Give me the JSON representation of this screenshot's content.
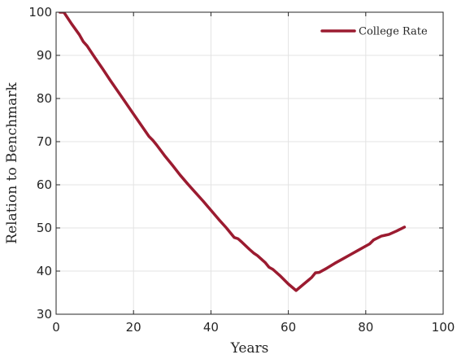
{
  "chart_data": {
    "type": "line",
    "xlabel": "Years",
    "ylabel": "Relation to Benchmark",
    "xlim": [
      0,
      100
    ],
    "ylim": [
      30,
      100
    ],
    "xticks": [
      0,
      20,
      40,
      60,
      80,
      100
    ],
    "yticks": [
      30,
      40,
      50,
      60,
      70,
      80,
      90,
      100
    ],
    "grid": true,
    "legend_position": "top-right",
    "series": [
      {
        "name": "College Rate",
        "color": "#9b1b30",
        "x": [
          1,
          2,
          4,
          6,
          7,
          8,
          10,
          12,
          14,
          16,
          18,
          20,
          22,
          24,
          25,
          26,
          28,
          30,
          32,
          34,
          36,
          38,
          40,
          42,
          44,
          46,
          47,
          48,
          50,
          51,
          52,
          54,
          55,
          56,
          58,
          60,
          62,
          64,
          66,
          67,
          68,
          70,
          72,
          74,
          76,
          78,
          80,
          81,
          82,
          84,
          85,
          86,
          88,
          90
        ],
        "y": [
          100,
          100,
          97.3,
          94.8,
          93.2,
          92.2,
          89.5,
          86.9,
          84.2,
          81.6,
          79.0,
          76.4,
          73.8,
          71.2,
          70.3,
          69.2,
          66.8,
          64.6,
          62.3,
          60.2,
          58.2,
          56.2,
          54.1,
          52.0,
          50.0,
          47.8,
          47.5,
          46.7,
          45.0,
          44.2,
          43.6,
          42.0,
          40.9,
          40.4,
          38.8,
          37.0,
          35.5,
          37.0,
          38.5,
          39.6,
          39.7,
          40.7,
          41.8,
          42.8,
          43.8,
          44.8,
          45.8,
          46.3,
          47.2,
          48.1,
          48.3,
          48.5,
          49.3,
          50.2
        ]
      }
    ]
  }
}
